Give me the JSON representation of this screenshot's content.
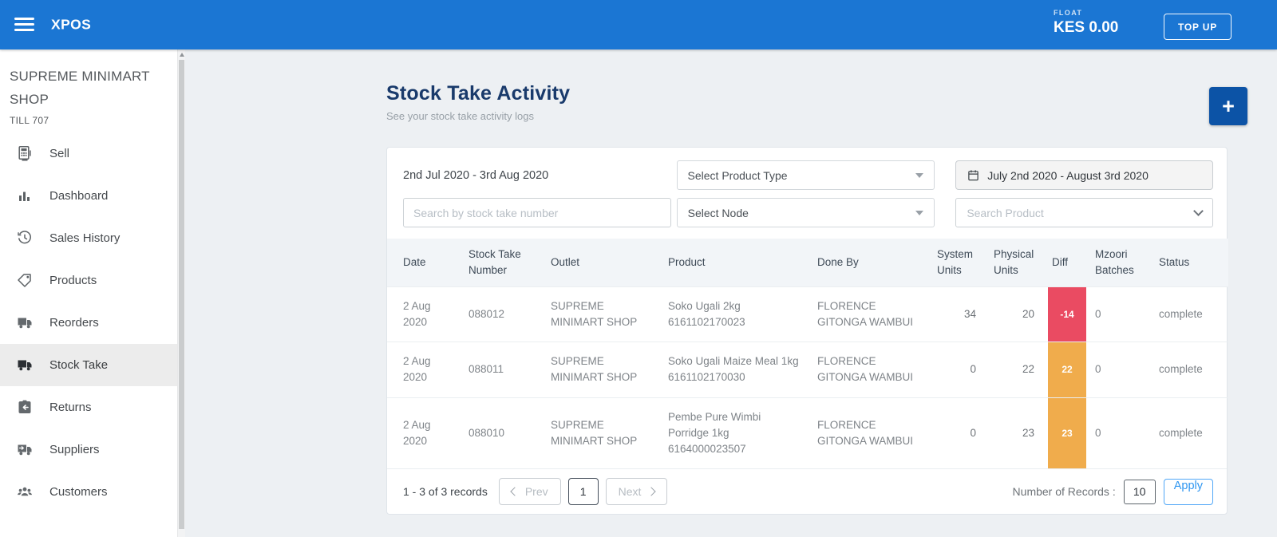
{
  "topbar": {
    "brand": "XPOS",
    "float_label": "FLOAT",
    "float_value": "KES 0.00",
    "top_up_label": "TOP UP"
  },
  "sidebar": {
    "store_name": "SUPREME MINIMART SHOP",
    "till": "TILL 707",
    "items": [
      {
        "label": "Sell",
        "icon": "pos-terminal-icon",
        "active": false
      },
      {
        "label": "Dashboard",
        "icon": "bar-chart-icon",
        "active": false
      },
      {
        "label": "Sales History",
        "icon": "history-clock-icon",
        "active": false
      },
      {
        "label": "Products",
        "icon": "tag-icon",
        "active": false
      },
      {
        "label": "Reorders",
        "icon": "truck-icon",
        "active": false
      },
      {
        "label": "Stock Take",
        "icon": "truck-filled-icon",
        "active": true
      },
      {
        "label": "Returns",
        "icon": "return-box-icon",
        "active": false
      },
      {
        "label": "Suppliers",
        "icon": "delivery-truck-icon",
        "active": false
      },
      {
        "label": "Customers",
        "icon": "people-icon",
        "active": false
      }
    ]
  },
  "page": {
    "title": "Stock Take Activity",
    "subtitle": "See your stock take activity logs",
    "add_button": "+"
  },
  "filters": {
    "date_range_text": "2nd Jul 2020 - 3rd Aug 2020",
    "product_type_placeholder": "Select Product Type",
    "date_picker_label": "July 2nd 2020 - August 3rd 2020",
    "search_stock_take_placeholder": "Search by stock take number",
    "node_placeholder": "Select Node",
    "search_product_placeholder": "Search Product"
  },
  "table": {
    "columns": [
      "Date",
      "Stock Take Number",
      "Outlet",
      "Product",
      "Done By",
      "System Units",
      "Physical Units",
      "Diff",
      "Mzoori Batches",
      "Status"
    ],
    "rows": [
      {
        "date": "2 Aug 2020",
        "stock_take_number": "088012",
        "outlet": "SUPREME MINIMART SHOP",
        "product_name": "Soko Ugali 2kg",
        "product_code": "6161102170023",
        "done_by": "FLORENCE GITONGA WAMBUI",
        "system_units": "34",
        "physical_units": "20",
        "diff": "-14",
        "diff_color": "#ea4b62",
        "mzoori_batches": "0",
        "status": "complete"
      },
      {
        "date": "2 Aug 2020",
        "stock_take_number": "088011",
        "outlet": "SUPREME MINIMART SHOP",
        "product_name": "Soko Ugali Maize Meal 1kg",
        "product_code": "6161102170030",
        "done_by": "FLORENCE GITONGA WAMBUI",
        "system_units": "0",
        "physical_units": "22",
        "diff": "22",
        "diff_color": "#f0ac4c",
        "mzoori_batches": "0",
        "status": "complete"
      },
      {
        "date": "2 Aug 2020",
        "stock_take_number": "088010",
        "outlet": "SUPREME MINIMART SHOP",
        "product_name": "Pembe Pure Wimbi Porridge 1kg",
        "product_code": "6164000023507",
        "done_by": "FLORENCE GITONGA WAMBUI",
        "system_units": "0",
        "physical_units": "23",
        "diff": "23",
        "diff_color": "#f0ac4c",
        "mzoori_batches": "0",
        "status": "complete"
      }
    ]
  },
  "pagination": {
    "records_text": "1 - 3 of 3 records",
    "prev_label": "Prev",
    "page_label": "1",
    "next_label": "Next",
    "number_of_records_label": "Number of Records :",
    "number_of_records_value": "10",
    "apply_label": "Apply"
  },
  "colors": {
    "topbar_blue": "#1b76d3",
    "accent_blue": "#0c53a6",
    "heading_navy": "#193a6b",
    "diff_negative_red": "#ea4b62",
    "diff_positive_orange": "#f0ac4c",
    "apply_blue": "#2f96f0",
    "active_nav_bg": "#ececec",
    "main_bg": "#edf0f3"
  }
}
